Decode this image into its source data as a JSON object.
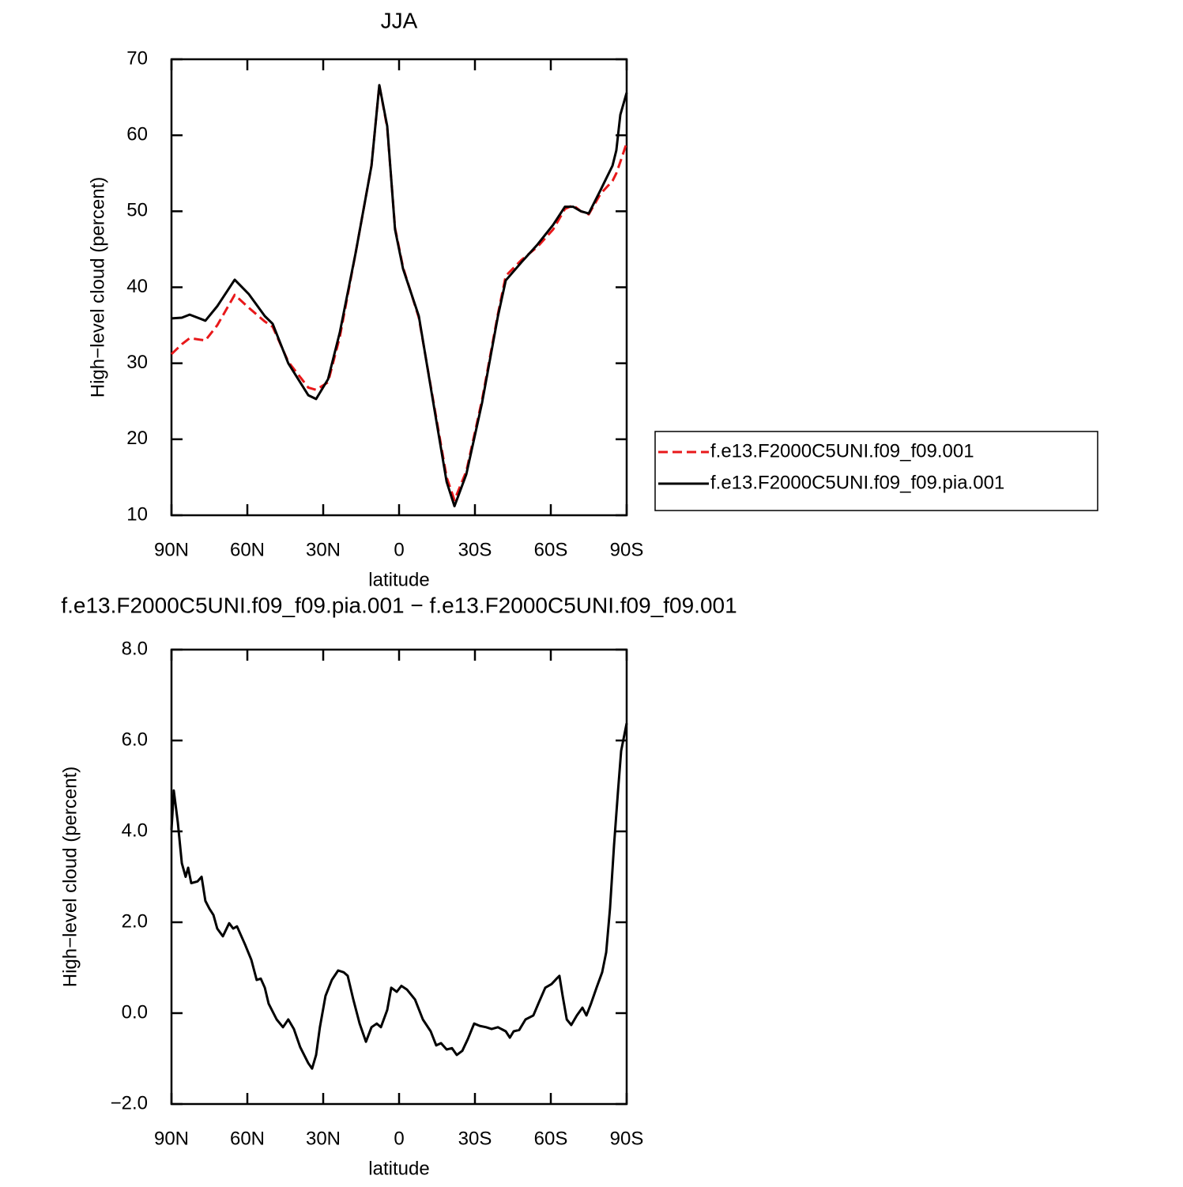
{
  "chart_data": [
    {
      "type": "line",
      "title": "JJA",
      "x_label": "latitude",
      "y_label": "High−level cloud (percent)",
      "xlim": [
        90,
        -90
      ],
      "xticks": [
        {
          "value": 90,
          "label": "90N"
        },
        {
          "value": 60,
          "label": "60N"
        },
        {
          "value": 30,
          "label": "30N"
        },
        0,
        {
          "value": -30,
          "label": "30S"
        },
        {
          "value": -60,
          "label": "60S"
        },
        {
          "value": -90,
          "label": "90S"
        }
      ],
      "ylim": [
        10,
        70
      ],
      "yticks": [
        10,
        20,
        30,
        40,
        50,
        60,
        70
      ],
      "x": [
        90,
        85.9,
        82.8,
        76.6,
        71.9,
        65,
        59.4,
        53.1,
        50,
        43.8,
        35.9,
        32.8,
        28.1,
        23.4,
        17.2,
        10.9,
        7.8,
        4.7,
        1.6,
        -1.6,
        -7.8,
        -14.1,
        -18.8,
        -21.9,
        -26.6,
        -32.8,
        -39.1,
        -42.2,
        -48.4,
        -54.7,
        -60.9,
        -65.6,
        -68.8,
        -71.9,
        -75,
        -79.7,
        -84.4,
        -85.9,
        -87.5,
        -90
      ],
      "legend": "right",
      "series": [
        {
          "name": "f.e13.F2000C5UNI.f09_f09.001",
          "color": "#e8181a",
          "line_style": "dashed",
          "values": [
            31.2,
            32.5,
            33.3,
            33.0,
            35.0,
            39.0,
            37.3,
            35.5,
            34.8,
            30.2,
            26.8,
            26.5,
            27.5,
            33.5,
            44.5,
            56.0,
            66.6,
            61.0,
            47.8,
            42.6,
            36.0,
            24.0,
            15.0,
            12.0,
            15.8,
            25.2,
            36.5,
            41.5,
            43.6,
            45.3,
            47.6,
            50.3,
            50.8,
            50.0,
            49.6,
            52.3,
            54.0,
            55.0,
            56.5,
            59.0
          ]
        },
        {
          "name": "f.e13.F2000C5UNI.f09_f09.pia.001",
          "color": "#000000",
          "line_style": "solid",
          "values": [
            35.9,
            36.0,
            36.4,
            35.6,
            37.5,
            41.0,
            39.1,
            36.2,
            35.2,
            30.0,
            25.8,
            25.3,
            27.9,
            34.1,
            44.5,
            56.0,
            66.6,
            61.2,
            47.6,
            42.4,
            36.2,
            23.7,
            14.4,
            11.2,
            15.4,
            24.8,
            36.2,
            40.9,
            43.3,
            45.6,
            48.2,
            50.6,
            50.6,
            50.0,
            49.7,
            52.8,
            56.0,
            58.0,
            62.7,
            65.6
          ]
        }
      ]
    },
    {
      "type": "line",
      "title": "f.e13.F2000C5UNI.f09_f09.pia.001 − f.e13.F2000C5UNI.f09_f09.001",
      "x_label": "latitude",
      "y_label": "High−level cloud (percent)",
      "xlim": [
        90,
        -90
      ],
      "xticks": [
        {
          "value": 90,
          "label": "90N"
        },
        {
          "value": 60,
          "label": "60N"
        },
        {
          "value": 30,
          "label": "30N"
        },
        0,
        {
          "value": -30,
          "label": "30S"
        },
        {
          "value": -60,
          "label": "60S"
        },
        {
          "value": -90,
          "label": "90S"
        }
      ],
      "ylim": [
        -2,
        8
      ],
      "yticks": [
        {
          "value": -2,
          "label": "−2.0"
        },
        {
          "value": 0,
          "label": "0.0"
        },
        {
          "value": 2,
          "label": "2.0"
        },
        {
          "value": 4,
          "label": "4.0"
        },
        {
          "value": 6,
          "label": "6.0"
        },
        {
          "value": 8,
          "label": "8.0"
        }
      ],
      "x": [
        90,
        89.1,
        87.5,
        85.9,
        84.4,
        83.4,
        82.2,
        79.7,
        78.1,
        76.6,
        75,
        73.4,
        71.9,
        69.7,
        67.2,
        65.6,
        64.1,
        60.9,
        58.4,
        56.3,
        54.7,
        53.1,
        51.6,
        48.4,
        45.9,
        43.8,
        41.6,
        39.1,
        35.9,
        34.4,
        32.8,
        31.3,
        29.1,
        26.6,
        24.1,
        21.9,
        20.3,
        18.1,
        15.6,
        13.1,
        10.9,
        8.8,
        7.2,
        4.7,
        3.1,
        0.9,
        -0.9,
        -3.1,
        -6.3,
        -9.4,
        -12.5,
        -14.7,
        -16.6,
        -18.8,
        -20.9,
        -22.8,
        -25,
        -27.2,
        -29.7,
        -31.9,
        -34.4,
        -36.6,
        -39.1,
        -42.2,
        -43.8,
        -45.3,
        -47.5,
        -50,
        -53.1,
        -55.3,
        -57.8,
        -60.3,
        -62.5,
        -63.4,
        -64.7,
        -66.3,
        -68.1,
        -70.3,
        -72.5,
        -74.1,
        -75.9,
        -78.1,
        -80.3,
        -81.9,
        -83.4,
        -85,
        -86.6,
        -87.8,
        -90
      ],
      "series": [
        {
          "color": "#000000",
          "line_style": "solid",
          "values": [
            4.03,
            4.9,
            4.2,
            3.3,
            3.0,
            3.2,
            2.86,
            2.9,
            3.0,
            2.47,
            2.3,
            2.16,
            1.86,
            1.69,
            1.98,
            1.86,
            1.91,
            1.51,
            1.17,
            0.73,
            0.76,
            0.56,
            0.21,
            -0.14,
            -0.31,
            -0.14,
            -0.35,
            -0.75,
            -1.1,
            -1.22,
            -0.92,
            -0.31,
            0.38,
            0.73,
            0.94,
            0.9,
            0.82,
            0.3,
            -0.23,
            -0.63,
            -0.31,
            -0.23,
            -0.31,
            0.07,
            0.56,
            0.47,
            0.6,
            0.52,
            0.3,
            -0.14,
            -0.4,
            -0.71,
            -0.66,
            -0.8,
            -0.77,
            -0.92,
            -0.83,
            -0.57,
            -0.23,
            -0.28,
            -0.31,
            -0.35,
            -0.31,
            -0.4,
            -0.54,
            -0.4,
            -0.37,
            -0.14,
            -0.05,
            0.24,
            0.56,
            0.64,
            0.77,
            0.82,
            0.38,
            -0.14,
            -0.26,
            -0.05,
            0.12,
            -0.05,
            0.21,
            0.56,
            0.9,
            1.34,
            2.3,
            3.69,
            4.9,
            5.77,
            6.38
          ]
        }
      ]
    }
  ]
}
